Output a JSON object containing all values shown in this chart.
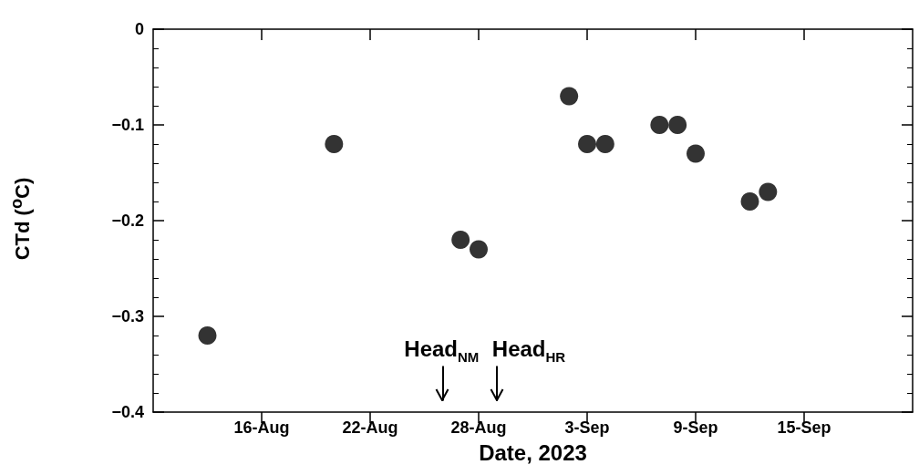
{
  "chart_data": {
    "type": "scatter",
    "xlabel": "Date, 2023",
    "ylabel": "CTd ($^{o}$C)",
    "x": [
      "2023-08-13",
      "2023-08-20",
      "2023-08-27",
      "2023-08-28",
      "2023-09-02",
      "2023-09-03",
      "2023-09-04",
      "2023-09-07",
      "2023-09-08",
      "2023-09-09",
      "2023-09-12",
      "2023-09-13"
    ],
    "series": [
      {
        "color": "#000000",
        "values": [
          -0.32,
          -0.12,
          -0.22,
          -0.23,
          -0.07,
          -0.12,
          -0.12,
          -0.1,
          -0.1,
          -0.13,
          -0.18,
          -0.17
        ]
      }
    ],
    "xlim": [
      "2023-08-10",
      "2023-09-21"
    ],
    "xticks": [
      {
        "value": "2023-08-16",
        "label": "16-Aug"
      },
      {
        "value": "2023-08-22",
        "label": "22-Aug"
      },
      {
        "value": "2023-08-28",
        "label": "28-Aug"
      },
      {
        "value": "2023-09-03",
        "label": "3-Sep"
      },
      {
        "value": "2023-09-09",
        "label": "9-Sep"
      },
      {
        "value": "2023-09-15",
        "label": "15-Sep"
      }
    ],
    "ylim": [
      -0.4,
      0
    ],
    "yticks": [
      -0.4,
      -0.3,
      -0.2,
      -0.1,
      0
    ],
    "ref_lines": [
      {
        "axis": "x",
        "value": "2023-08-26",
        "label": "Head$_{NM}$"
      },
      {
        "axis": "x",
        "value": "2023-08-29",
        "label": "Head$_{HR}$"
      }
    ],
    "marker": "circle",
    "grid": false
  }
}
